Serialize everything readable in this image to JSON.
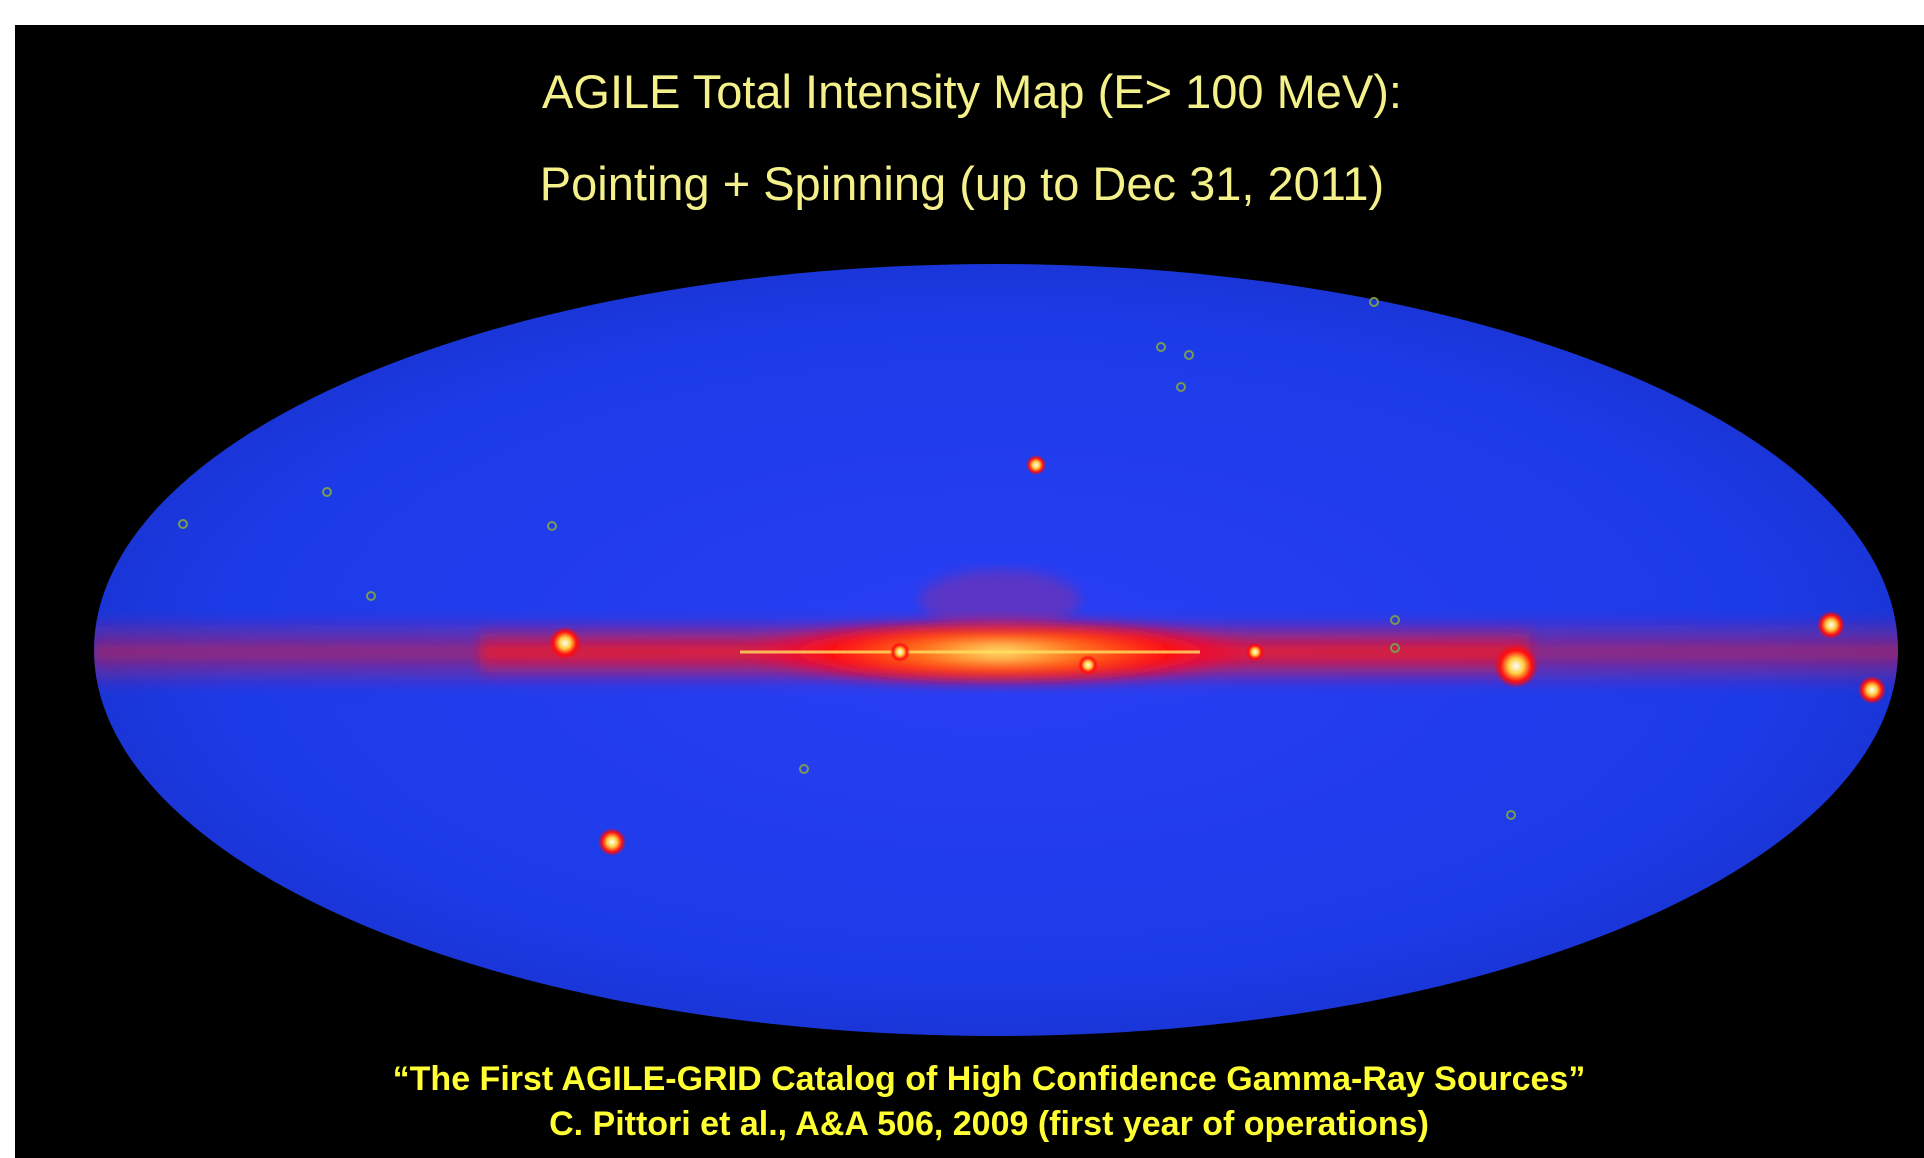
{
  "title": {
    "line1": "AGILE Total Intensity Map (E> 100 MeV):",
    "line2": "Pointing + Spinning (up to Dec 31, 2011)"
  },
  "citation": {
    "line1": "“The First AGILE-GRID Catalog of High Confidence Gamma-Ray Sources”",
    "line2": "C. Pittori et al., A&A 506, 2009 (first year of operations)"
  }
}
